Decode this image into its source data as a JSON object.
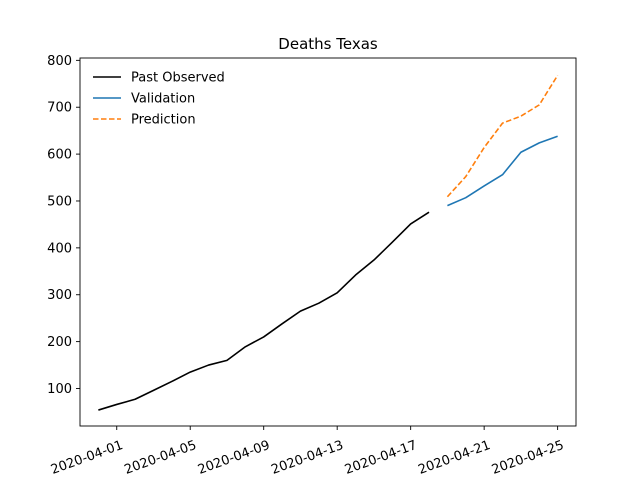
{
  "chart_data": {
    "type": "line",
    "title": "Deaths Texas",
    "xlabel": "",
    "ylabel": "",
    "x_ticks": [
      "2020-04-01",
      "2020-04-05",
      "2020-04-09",
      "2020-04-13",
      "2020-04-17",
      "2020-04-21",
      "2020-04-25"
    ],
    "y_ticks": [
      100,
      200,
      300,
      400,
      500,
      600,
      700,
      800
    ],
    "xlim": [
      "2020-03-30",
      "2020-04-26"
    ],
    "ylim": [
      20,
      805
    ],
    "legend_position": "top-left",
    "grid": false,
    "series": [
      {
        "name": "Past Observed",
        "color": "#000000",
        "style": "solid",
        "points": [
          [
            "2020-03-31",
            54
          ],
          [
            "2020-04-01",
            66
          ],
          [
            "2020-04-02",
            77
          ],
          [
            "2020-04-03",
            96
          ],
          [
            "2020-04-04",
            115
          ],
          [
            "2020-04-05",
            135
          ],
          [
            "2020-04-06",
            150
          ],
          [
            "2020-04-07",
            160
          ],
          [
            "2020-04-08",
            189
          ],
          [
            "2020-04-09",
            210
          ],
          [
            "2020-04-10",
            238
          ],
          [
            "2020-04-11",
            265
          ],
          [
            "2020-04-12",
            282
          ],
          [
            "2020-04-13",
            304
          ],
          [
            "2020-04-14",
            342
          ],
          [
            "2020-04-15",
            374
          ],
          [
            "2020-04-16",
            412
          ],
          [
            "2020-04-17",
            451
          ],
          [
            "2020-04-18",
            476
          ]
        ]
      },
      {
        "name": "Validation",
        "color": "#1f77b4",
        "style": "solid",
        "points": [
          [
            "2020-04-19",
            490
          ],
          [
            "2020-04-20",
            507
          ],
          [
            "2020-04-21",
            532
          ],
          [
            "2020-04-22",
            556
          ],
          [
            "2020-04-23",
            604
          ],
          [
            "2020-04-24",
            624
          ],
          [
            "2020-04-25",
            638
          ]
        ]
      },
      {
        "name": "Prediction",
        "color": "#ff7f0e",
        "style": "dashed",
        "points": [
          [
            "2020-04-19",
            509
          ],
          [
            "2020-04-20",
            552
          ],
          [
            "2020-04-21",
            614
          ],
          [
            "2020-04-22",
            666
          ],
          [
            "2020-04-23",
            681
          ],
          [
            "2020-04-24",
            705
          ],
          [
            "2020-04-25",
            768
          ]
        ]
      }
    ]
  }
}
